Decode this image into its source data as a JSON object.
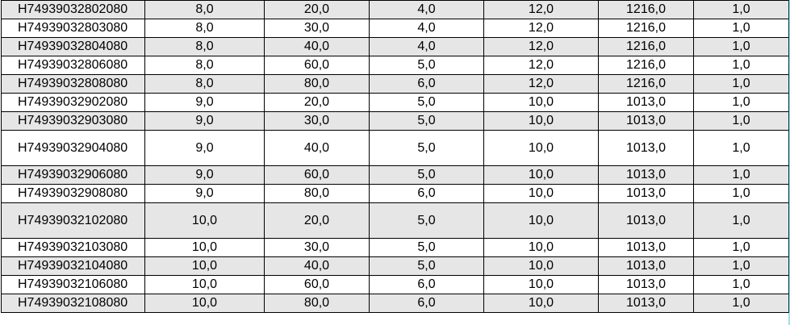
{
  "table": {
    "rows": [
      {
        "cells": [
          "H74939032802080",
          "8,0",
          "20,0",
          "4,0",
          "12,0",
          "1216,0",
          "1,0"
        ],
        "shaded": true,
        "tall": false
      },
      {
        "cells": [
          "H74939032803080",
          "8,0",
          "30,0",
          "4,0",
          "12,0",
          "1216,0",
          "1,0"
        ],
        "shaded": false,
        "tall": false
      },
      {
        "cells": [
          "H74939032804080",
          "8,0",
          "40,0",
          "4,0",
          "12,0",
          "1216,0",
          "1,0"
        ],
        "shaded": true,
        "tall": false
      },
      {
        "cells": [
          "H74939032806080",
          "8,0",
          "60,0",
          "5,0",
          "12,0",
          "1216,0",
          "1,0"
        ],
        "shaded": false,
        "tall": false
      },
      {
        "cells": [
          "H74939032808080",
          "8,0",
          "80,0",
          "6,0",
          "12,0",
          "1216,0",
          "1,0"
        ],
        "shaded": true,
        "tall": false
      },
      {
        "cells": [
          "H74939032902080",
          "9,0",
          "20,0",
          "5,0",
          "10,0",
          "1013,0",
          "1,0"
        ],
        "shaded": false,
        "tall": false
      },
      {
        "cells": [
          "H74939032903080",
          "9,0",
          "30,0",
          "5,0",
          "10,0",
          "1013,0",
          "1,0"
        ],
        "shaded": true,
        "tall": false
      },
      {
        "cells": [
          "H74939032904080",
          "9,0",
          "40,0",
          "5,0",
          "10,0",
          "1013,0",
          "1,0"
        ],
        "shaded": false,
        "tall": true
      },
      {
        "cells": [
          "H74939032906080",
          "9,0",
          "60,0",
          "5,0",
          "10,0",
          "1013,0",
          "1,0"
        ],
        "shaded": true,
        "tall": false
      },
      {
        "cells": [
          "H74939032908080",
          "9,0",
          "80,0",
          "6,0",
          "10,0",
          "1013,0",
          "1,0"
        ],
        "shaded": false,
        "tall": false
      },
      {
        "cells": [
          "H74939032102080",
          "10,0",
          "20,0",
          "5,0",
          "10,0",
          "1013,0",
          "1,0"
        ],
        "shaded": true,
        "tall": true
      },
      {
        "cells": [
          "H74939032103080",
          "10,0",
          "30,0",
          "5,0",
          "10,0",
          "1013,0",
          "1,0"
        ],
        "shaded": false,
        "tall": false
      },
      {
        "cells": [
          "H74939032104080",
          "10,0",
          "40,0",
          "5,0",
          "10,0",
          "1013,0",
          "1,0"
        ],
        "shaded": true,
        "tall": false
      },
      {
        "cells": [
          "H74939032106080",
          "10,0",
          "60,0",
          "6,0",
          "10,0",
          "1013,0",
          "1,0"
        ],
        "shaded": false,
        "tall": false
      },
      {
        "cells": [
          "H74939032108080",
          "10,0",
          "80,0",
          "6,0",
          "10,0",
          "1013,0",
          "1,0"
        ],
        "shaded": true,
        "tall": false
      }
    ]
  }
}
